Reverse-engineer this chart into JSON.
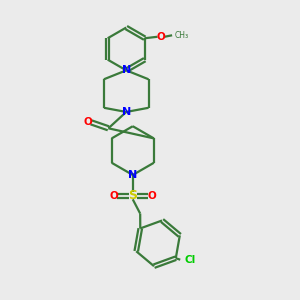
{
  "bg_color": "#ebebeb",
  "bond_color": "#3a7a3a",
  "n_color": "#0000ff",
  "o_color": "#ff0000",
  "s_color": "#cccc00",
  "cl_color": "#00cc00",
  "line_width": 1.6,
  "figsize": [
    3.0,
    3.0
  ],
  "dpi": 100,
  "xlim": [
    0,
    10
  ],
  "ylim": [
    0,
    10
  ]
}
